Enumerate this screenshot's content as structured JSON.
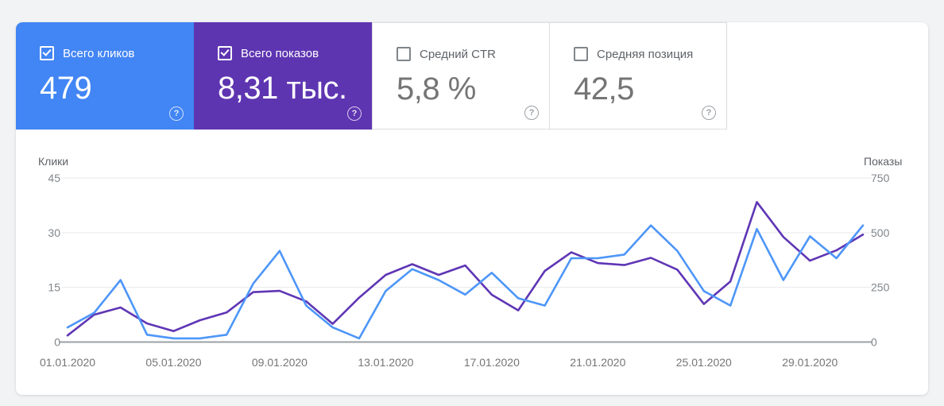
{
  "help_icon_glyph": "?",
  "cards": [
    {
      "id": "clicks",
      "label": "Всего кликов",
      "value": "479",
      "checked": true,
      "bg": "#4285f4",
      "text": "#ffffff"
    },
    {
      "id": "impressions",
      "label": "Всего показов",
      "value": "8,31 тыс.",
      "checked": true,
      "bg": "#5e35b1",
      "text": "#ffffff"
    },
    {
      "id": "ctr",
      "label": "Средний CTR",
      "value": "5,8 %",
      "checked": false,
      "bg": "#ffffff",
      "text": "#757575"
    },
    {
      "id": "position",
      "label": "Средняя позиция",
      "value": "42,5",
      "checked": false,
      "bg": "#ffffff",
      "text": "#757575"
    }
  ],
  "chart_data": {
    "type": "line",
    "title": "",
    "num_points": 31,
    "x_tick_labels": [
      "01.01.2020",
      "05.01.2020",
      "09.01.2020",
      "13.01.2020",
      "17.01.2020",
      "21.01.2020",
      "25.01.2020",
      "29.01.2020"
    ],
    "x_tick_indices": [
      0,
      4,
      8,
      12,
      16,
      20,
      24,
      28
    ],
    "left_axis": {
      "title": "Клики",
      "ticks": [
        0,
        15,
        30,
        45
      ],
      "max": 45
    },
    "right_axis": {
      "title": "Показы",
      "ticks": [
        0,
        250,
        500,
        750
      ],
      "max": 750
    },
    "grid": true,
    "legend_position": "none",
    "series": [
      {
        "name": "Клики",
        "axis": "left",
        "color": "#4d96f8",
        "values": [
          4,
          8,
          17,
          2,
          1,
          1,
          2,
          16,
          25,
          10,
          4,
          1,
          14,
          20,
          17,
          13,
          19,
          12,
          10,
          23,
          23,
          24,
          32,
          25,
          14,
          10,
          31,
          17,
          29,
          23,
          32
        ]
      },
      {
        "name": "Показы",
        "axis": "right",
        "color": "#5f36b5",
        "values": [
          30,
          125,
          158,
          85,
          50,
          100,
          135,
          228,
          234,
          186,
          83,
          203,
          307,
          356,
          307,
          350,
          216,
          145,
          325,
          410,
          361,
          352,
          385,
          331,
          174,
          277,
          640,
          480,
          372,
          419,
          491
        ]
      }
    ],
    "colors": {
      "gridline": "#e8eaed",
      "x_axis_line": "#9aa0a6",
      "tick_label": "#80868b",
      "axis_title": "#5f6368",
      "date_label": "#757575"
    }
  }
}
